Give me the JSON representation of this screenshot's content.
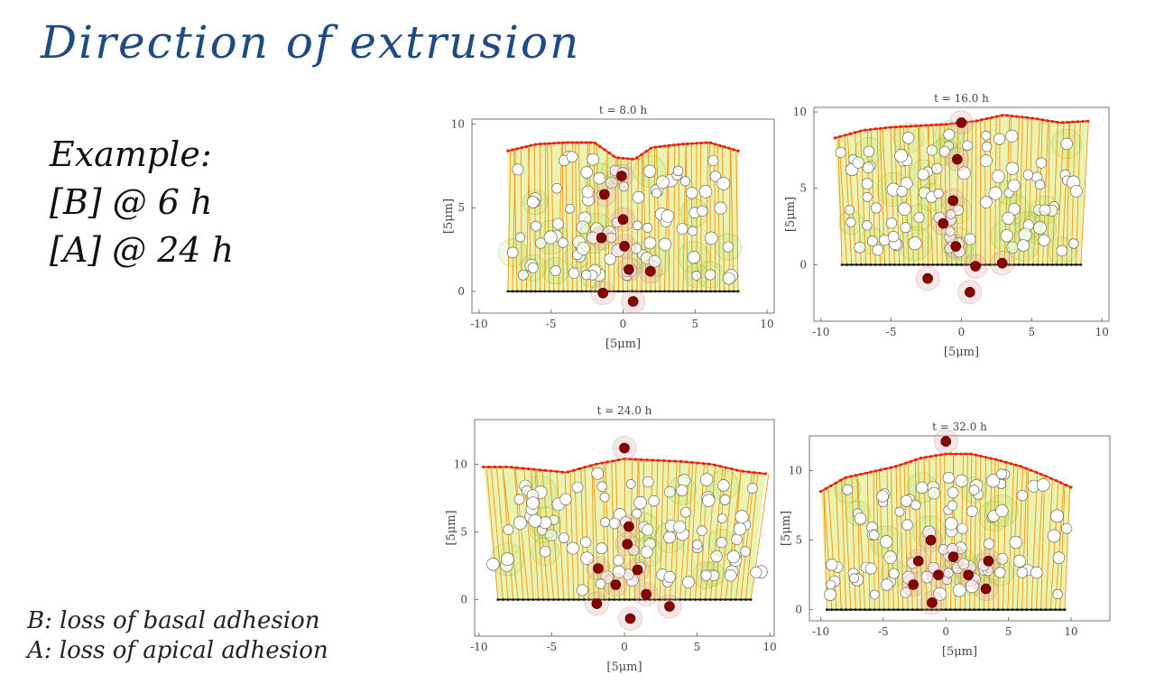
{
  "title": "Direction of extrusion",
  "notes": {
    "heading": "Example:",
    "line1": "[B] @ 6 h",
    "line2": "[A] @ 24 h"
  },
  "legend": {
    "b": "B: loss of basal adhesion",
    "a": "A: loss of apical adhesion"
  },
  "colors": {
    "title": "#1f4b85",
    "apical": "#e8200c",
    "basal": "#111111",
    "links": "#f08c00",
    "fill": "#c9dc1c",
    "extruded": "#8b0000",
    "cell": "#ffffff"
  },
  "chart_data": [
    {
      "type": "scatter",
      "title": "t = 8.0 h",
      "xlabel": "[5μm]",
      "ylabel": "[5μm]",
      "xlim": [
        -10.5,
        10.5
      ],
      "ylim": [
        -1.3,
        10.3
      ],
      "xticks": [
        -10,
        -5,
        0,
        5,
        10
      ],
      "yticks": [
        0,
        5,
        10
      ],
      "basal_x": [
        -8,
        8
      ],
      "apical_top": [
        [
          -8,
          8.4
        ],
        [
          -6,
          8.8
        ],
        [
          -4,
          8.9
        ],
        [
          -2,
          8.9
        ],
        [
          -0.5,
          8.0
        ],
        [
          0.8,
          7.9
        ],
        [
          2,
          8.6
        ],
        [
          4,
          8.8
        ],
        [
          6,
          8.9
        ],
        [
          8,
          8.4
        ]
      ],
      "extruded_cells": [
        [
          -1.3,
          5.8
        ],
        [
          -0.1,
          6.9
        ],
        [
          0,
          4.3
        ],
        [
          -1.5,
          3.2
        ],
        [
          0.1,
          2.7
        ],
        [
          0.4,
          1.3
        ],
        [
          1.9,
          1.2
        ],
        [
          -1.4,
          -0.1
        ],
        [
          0.7,
          -0.6
        ]
      ]
    },
    {
      "type": "scatter",
      "title": "t = 16.0 h",
      "xlabel": "[5μm]",
      "ylabel": "[5μm]",
      "xlim": [
        -10.5,
        10.5
      ],
      "ylim": [
        -3.7,
        10.3
      ],
      "xticks": [
        -10,
        -5,
        0,
        5,
        10
      ],
      "yticks": [
        0,
        5,
        10
      ],
      "basal_x": [
        -8.5,
        8.5
      ],
      "apical_top": [
        [
          -9,
          8.3
        ],
        [
          -7,
          8.8
        ],
        [
          -5,
          9.0
        ],
        [
          -3,
          9.1
        ],
        [
          -1,
          9.2
        ],
        [
          1,
          9.4
        ],
        [
          3,
          9.8
        ],
        [
          5,
          9.6
        ],
        [
          7,
          9.3
        ],
        [
          9,
          9.4
        ]
      ],
      "extruded_cells": [
        [
          0,
          9.3
        ],
        [
          -0.3,
          6.9
        ],
        [
          -0.6,
          4.2
        ],
        [
          -1.3,
          2.7
        ],
        [
          -0.4,
          1.2
        ],
        [
          -2.4,
          -0.9
        ],
        [
          1.0,
          -0.1
        ],
        [
          2.9,
          0.1
        ],
        [
          0.6,
          -1.8
        ]
      ]
    },
    {
      "type": "scatter",
      "title": "t = 24.0 h",
      "xlabel": "[5μm]",
      "ylabel": "[5μm]",
      "xlim": [
        -10.3,
        10.3
      ],
      "ylim": [
        -2.7,
        13.3
      ],
      "xticks": [
        -10,
        -5,
        0,
        5,
        10
      ],
      "yticks": [
        0,
        5,
        10
      ],
      "basal_x": [
        -8.7,
        8.7
      ],
      "apical_top": [
        [
          -9.7,
          9.8
        ],
        [
          -8,
          9.8
        ],
        [
          -6,
          9.6
        ],
        [
          -4,
          9.4
        ],
        [
          -2,
          10.0
        ],
        [
          0,
          10.4
        ],
        [
          2,
          10.3
        ],
        [
          4,
          10.2
        ],
        [
          6,
          10.0
        ],
        [
          8,
          9.5
        ],
        [
          9.7,
          9.3
        ]
      ],
      "extruded_cells": [
        [
          0,
          11.2
        ],
        [
          0.3,
          5.4
        ],
        [
          0.2,
          4.1
        ],
        [
          -1.8,
          2.3
        ],
        [
          0.9,
          2.2
        ],
        [
          -0.6,
          1.1
        ],
        [
          1.5,
          0.4
        ],
        [
          -1.9,
          -0.3
        ],
        [
          3.1,
          -0.5
        ],
        [
          0.4,
          -1.4
        ]
      ]
    },
    {
      "type": "scatter",
      "title": "t = 32.0 h",
      "xlabel": "[5μm]",
      "ylabel": "[5μm]",
      "xlim": [
        -10.9,
        13.1
      ],
      "ylim": [
        -0.8,
        12.5
      ],
      "xticks": [
        -10,
        -5,
        0,
        5,
        10
      ],
      "yticks": [
        0,
        5,
        10
      ],
      "basal_x": [
        -9.5,
        9.5
      ],
      "apical_top": [
        [
          -10,
          8.5
        ],
        [
          -8,
          9.5
        ],
        [
          -6,
          9.9
        ],
        [
          -4,
          10.3
        ],
        [
          -2,
          10.9
        ],
        [
          0,
          11.2
        ],
        [
          2,
          11.2
        ],
        [
          4,
          10.8
        ],
        [
          6,
          10.3
        ],
        [
          8,
          9.6
        ],
        [
          10,
          8.8
        ]
      ],
      "extruded_cells": [
        [
          0,
          12.1
        ],
        [
          -1.2,
          5.0
        ],
        [
          0.6,
          3.8
        ],
        [
          -2.2,
          3.5
        ],
        [
          -0.6,
          2.5
        ],
        [
          1.8,
          2.5
        ],
        [
          3.4,
          3.5
        ],
        [
          -2.6,
          1.8
        ],
        [
          -1.1,
          0.5
        ],
        [
          3.2,
          1.5
        ]
      ]
    }
  ]
}
